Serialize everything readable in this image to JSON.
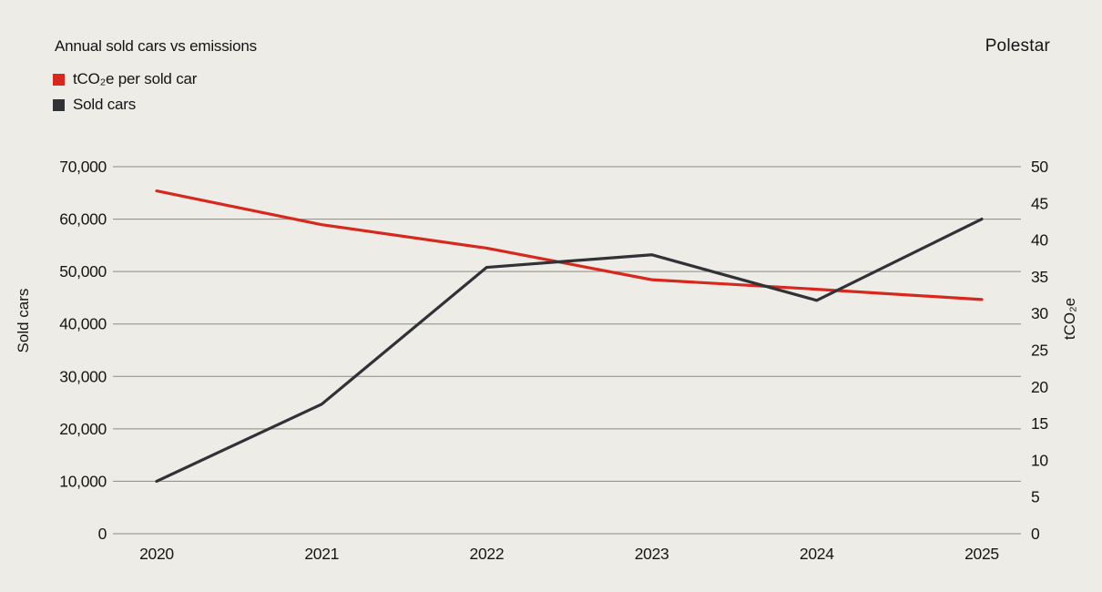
{
  "page": {
    "background": "#edece6"
  },
  "header": {
    "title": "Annual sold cars vs emissions",
    "brand": "Polestar"
  },
  "legend": [
    {
      "label": "tCO₂e per sold car",
      "color": "#d8281d",
      "series": "emissions"
    },
    {
      "label": "Sold cars",
      "color": "#303237",
      "series": "sold-cars"
    }
  ],
  "chart_data": {
    "type": "line",
    "title": "Annual sold cars vs emissions",
    "categories": [
      "2020",
      "2021",
      "2022",
      "2023",
      "2024",
      "2025"
    ],
    "series": [
      {
        "name": "tCO₂e per sold car",
        "axis": "right",
        "color": "#d8281d",
        "values": [
          46.7,
          42.1,
          38.9,
          34.6,
          33.3,
          31.9
        ]
      },
      {
        "name": "Sold cars",
        "axis": "left",
        "color": "#303237",
        "values": [
          10000,
          24700,
          50800,
          53200,
          44500,
          60000
        ]
      }
    ],
    "left_axis": {
      "label": "Sold cars",
      "min": 0,
      "max": 70000,
      "tick_step": 10000,
      "tick_labels": [
        "0",
        "10,000",
        "20,000",
        "30,000",
        "40,000",
        "50,000",
        "60,000",
        "70,000"
      ]
    },
    "right_axis": {
      "label": "tCO₂e",
      "min": 0,
      "max": 50,
      "tick_step": 5,
      "tick_labels": [
        "0",
        "5",
        "10",
        "15",
        "20",
        "25",
        "30",
        "35",
        "40",
        "45",
        "50"
      ]
    },
    "grid": "horizontal",
    "gridline_color": "#8b8b84",
    "legend_position": "top-left"
  }
}
